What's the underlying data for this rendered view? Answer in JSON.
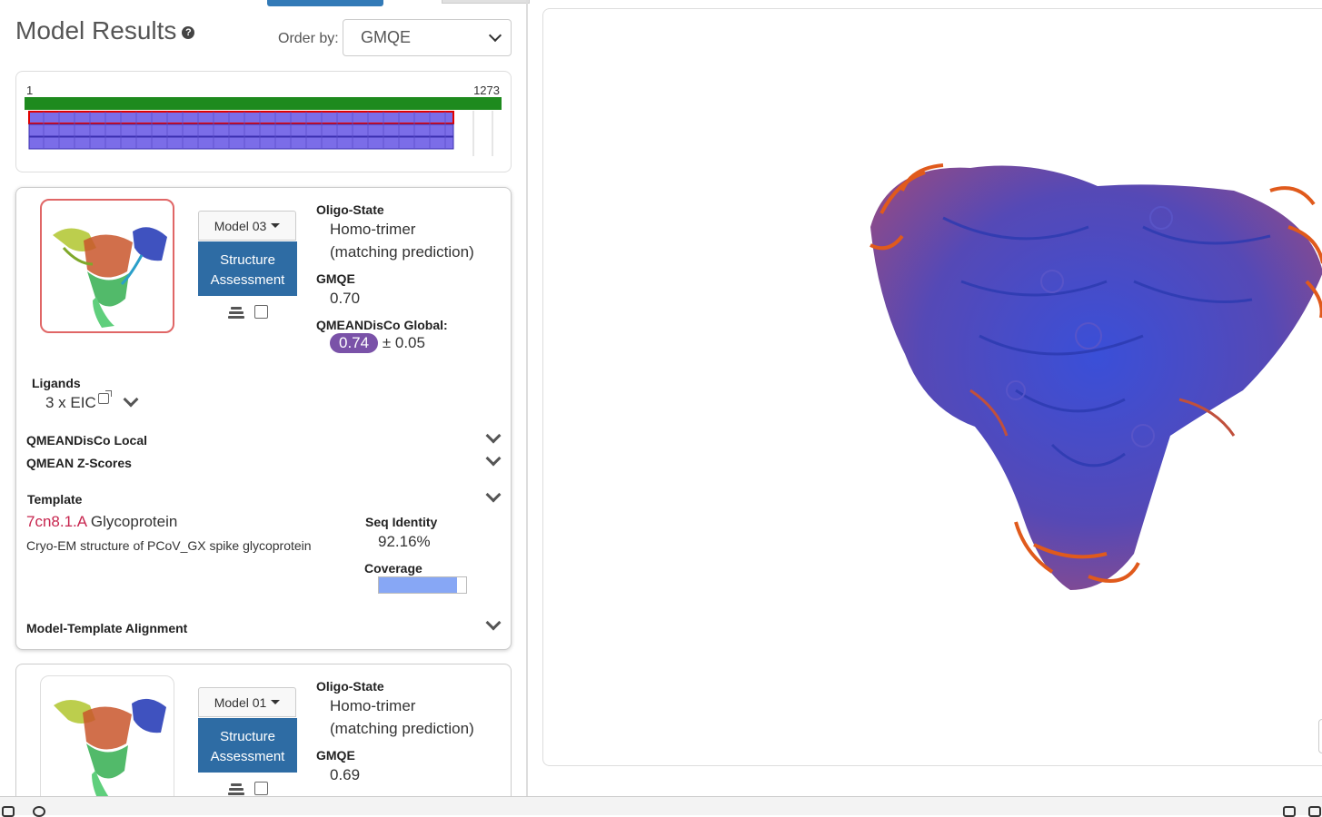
{
  "header": {
    "title": "Model Results",
    "help_icon": "question-circle-icon",
    "order_by_label": "Order by:",
    "order_by_value": "GMQE"
  },
  "overview": {
    "range_start": "1",
    "range_end": "1273"
  },
  "models": [
    {
      "model_label": "Model 03",
      "structure_assessment_line1": "Structure",
      "structure_assessment_line2": "Assessment",
      "oligo_state_label": "Oligo-State",
      "oligo_state_line1": "Homo-trimer",
      "oligo_state_line2": "(matching prediction)",
      "gmqe_label": "GMQE",
      "gmqe_value": "0.70",
      "qmean_label": "QMEANDisCo Global:",
      "qmean_value": "0.74",
      "qmean_error": "± 0.05",
      "ligands_label": "Ligands",
      "ligands_value": "3 x EIC",
      "qmean_local_label": "QMEANDisCo Local",
      "qmean_z_label": "QMEAN Z-Scores",
      "template_label": "Template",
      "template_id": "7cn8.1.A",
      "template_name": "Glycoprotein",
      "template_desc": "Cryo-EM structure of PCoV_GX spike glycoprotein",
      "seq_identity_label": "Seq Identity",
      "seq_identity_value": "92.16%",
      "coverage_label": "Coverage",
      "coverage_fraction": 0.9,
      "alignment_label": "Model-Template Alignment"
    },
    {
      "model_label": "Model 01",
      "structure_assessment_line1": "Structure",
      "structure_assessment_line2": "Assessment",
      "oligo_state_label": "Oligo-State",
      "oligo_state_line1": "Homo-trimer",
      "oligo_state_line2": "(matching prediction)",
      "gmqe_label": "GMQE",
      "gmqe_value": "0.69"
    }
  ],
  "colors": {
    "accent_blue": "#2e6ca4",
    "qmean_purple": "#7a52a8",
    "template_red": "#c7254e",
    "coverage_blue": "#87a7f5",
    "overview_green": "#1e8a1e",
    "overview_bar": "#7b6de8"
  }
}
